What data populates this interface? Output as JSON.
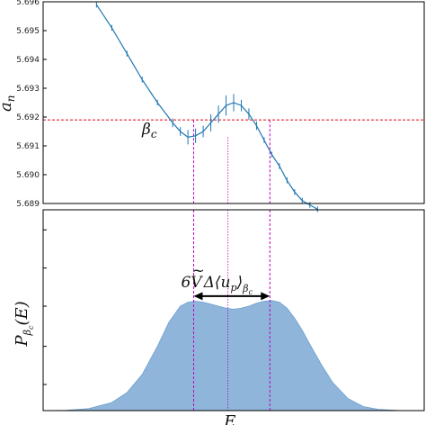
{
  "colors": {
    "curve": "#1f77b4",
    "errorbar": "#1f77b4",
    "threshold": "#e8202a",
    "guide": "#c000c0",
    "fill": "#8fb6da",
    "fill_edge": "#6e9fcf"
  },
  "chart_data": [
    {
      "type": "line",
      "panel": "top",
      "ylabel": "a_n",
      "ylabel_main": "a",
      "ylabel_sub": "n",
      "xlabel": "",
      "ylim": [
        5.689,
        5.696
      ],
      "xlim": [
        0,
        1
      ],
      "yticks": [
        5.689,
        5.69,
        5.691,
        5.692,
        5.693,
        5.694,
        5.695,
        5.696
      ],
      "ytick_labels": [
        "5.689",
        "5.690",
        "5.691",
        "5.692",
        "5.693",
        "5.694",
        "5.695",
        "5.696"
      ],
      "grid": false,
      "series": [
        {
          "x": [
            0.14,
            0.18,
            0.22,
            0.26,
            0.3,
            0.34,
            0.36,
            0.38,
            0.4,
            0.42,
            0.44,
            0.46,
            0.48,
            0.5,
            0.52,
            0.54,
            0.56,
            0.58,
            0.6,
            0.62,
            0.64,
            0.66,
            0.68,
            0.7,
            0.72
          ],
          "y": [
            5.6959,
            5.6951,
            5.6942,
            5.6933,
            5.6925,
            5.6918,
            5.6915,
            5.6913,
            5.69135,
            5.6915,
            5.6918,
            5.6921,
            5.6924,
            5.6925,
            5.6924,
            5.6921,
            5.6917,
            5.6912,
            5.6907,
            5.6903,
            5.6898,
            5.6894,
            5.6891,
            5.68895,
            5.6888
          ],
          "yerr": [
            0.0001,
            0.0001,
            0.0001,
            0.0001,
            0.0001,
            0.00015,
            0.00015,
            0.00025,
            0.00025,
            0.0002,
            0.0003,
            0.0003,
            0.00035,
            0.0003,
            0.0002,
            0.0002,
            0.00015,
            0.0001,
            0.0001,
            0.0001,
            0.0001,
            0.0001,
            0.0001,
            0.0001,
            0.0001
          ]
        }
      ],
      "hline": {
        "y": 5.6919,
        "label": "β_c"
      },
      "annotation": {
        "main": "β",
        "sub": "c"
      }
    },
    {
      "type": "area",
      "panel": "bottom",
      "xlabel": "E",
      "ylabel": "P_{β_c}(E)",
      "ylabel_main": "P",
      "ylabel_sub": "β",
      "ylabel_subsub": "c",
      "ylabel_arg": "(E)",
      "xlim": [
        0,
        1
      ],
      "ylim": [
        0,
        1
      ],
      "yticks": [
        0.13,
        0.32,
        0.52,
        0.71,
        0.9
      ],
      "grid": false,
      "x": [
        0.0,
        0.06,
        0.12,
        0.18,
        0.22,
        0.26,
        0.3,
        0.33,
        0.36,
        0.38,
        0.4,
        0.42,
        0.44,
        0.46,
        0.48,
        0.5,
        0.52,
        0.54,
        0.56,
        0.58,
        0.6,
        0.62,
        0.64,
        0.66,
        0.68,
        0.7,
        0.73,
        0.76,
        0.8,
        0.84,
        0.88,
        0.93,
        1.0
      ],
      "y": [
        0.0,
        0.002,
        0.01,
        0.04,
        0.09,
        0.18,
        0.32,
        0.44,
        0.52,
        0.54,
        0.545,
        0.54,
        0.53,
        0.52,
        0.51,
        0.505,
        0.51,
        0.52,
        0.535,
        0.545,
        0.548,
        0.54,
        0.51,
        0.46,
        0.4,
        0.33,
        0.23,
        0.14,
        0.06,
        0.02,
        0.006,
        0.001,
        0.0
      ],
      "guide_x": [
        0.395,
        0.485,
        0.595
      ],
      "arrow": {
        "x_from": 0.395,
        "x_to": 0.595,
        "y": 0.57
      },
      "annotation": "6Ṽ Δ⟨u_p⟩_{β_c}",
      "annotation_parts": {
        "lead": "6V",
        "tilde": "~",
        "delta": "Δ",
        "open": "⟨",
        "var": "u",
        "var_sub": "p",
        "close": "⟩",
        "sub": "β",
        "subsub": "c"
      }
    }
  ]
}
